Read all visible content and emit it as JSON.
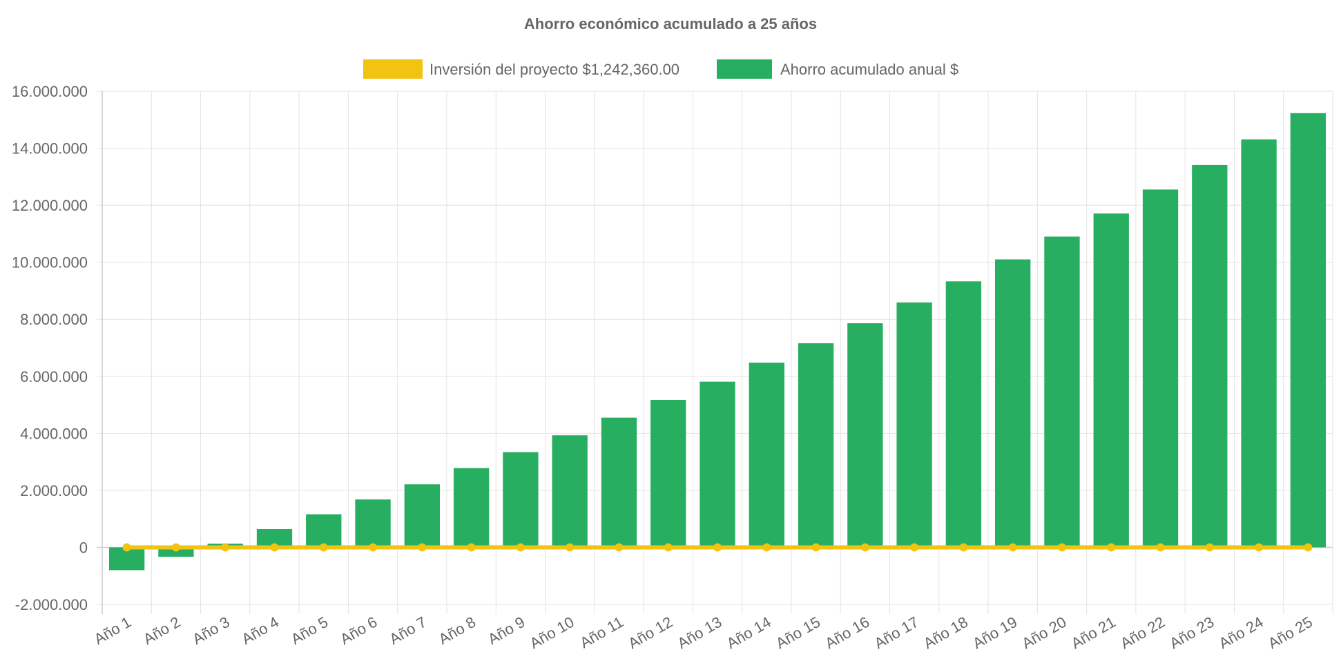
{
  "chart_data": {
    "type": "bar",
    "title": "Ahorro económico acumulado a 25 años",
    "categories": [
      "Año 1",
      "Año 2",
      "Año 3",
      "Año 4",
      "Año 5",
      "Año 6",
      "Año 7",
      "Año 8",
      "Año 9",
      "Año 10",
      "Año 11",
      "Año 12",
      "Año 13",
      "Año 14",
      "Año 15",
      "Año 16",
      "Año 17",
      "Año 18",
      "Año 19",
      "Año 20",
      "Año 21",
      "Año 22",
      "Año 23",
      "Año 24",
      "Año 25"
    ],
    "series": [
      {
        "name": "Inversión del proyecto $1,242,360.00",
        "type": "line",
        "color": "#f2c311",
        "values": [
          0,
          0,
          0,
          0,
          0,
          0,
          0,
          0,
          0,
          0,
          0,
          0,
          0,
          0,
          0,
          0,
          0,
          0,
          0,
          0,
          0,
          0,
          0,
          0,
          0
        ]
      },
      {
        "name": "Ahorro acumulado anual $",
        "type": "bar",
        "color": "#27ae60",
        "values": [
          -800000,
          -330000,
          130000,
          640000,
          1160000,
          1680000,
          2210000,
          2780000,
          3340000,
          3930000,
          4550000,
          5170000,
          5810000,
          6480000,
          7160000,
          7860000,
          8590000,
          9330000,
          10100000,
          10900000,
          11710000,
          12550000,
          13410000,
          14310000,
          15230000
        ]
      }
    ],
    "ylim": [
      -2000000,
      16000000
    ],
    "yticks": [
      16000000,
      14000000,
      12000000,
      10000000,
      8000000,
      6000000,
      4000000,
      2000000,
      0,
      -2000000
    ],
    "ytick_labels": [
      "16.000.000",
      "14.000.000",
      "12.000.000",
      "10.000.000",
      "8.000.000",
      "6.000.000",
      "4.000.000",
      "2.000.000",
      "0",
      "-2.000.000"
    ],
    "xlabel": "",
    "ylabel": "",
    "grid": true,
    "legend_position": "top-center"
  }
}
